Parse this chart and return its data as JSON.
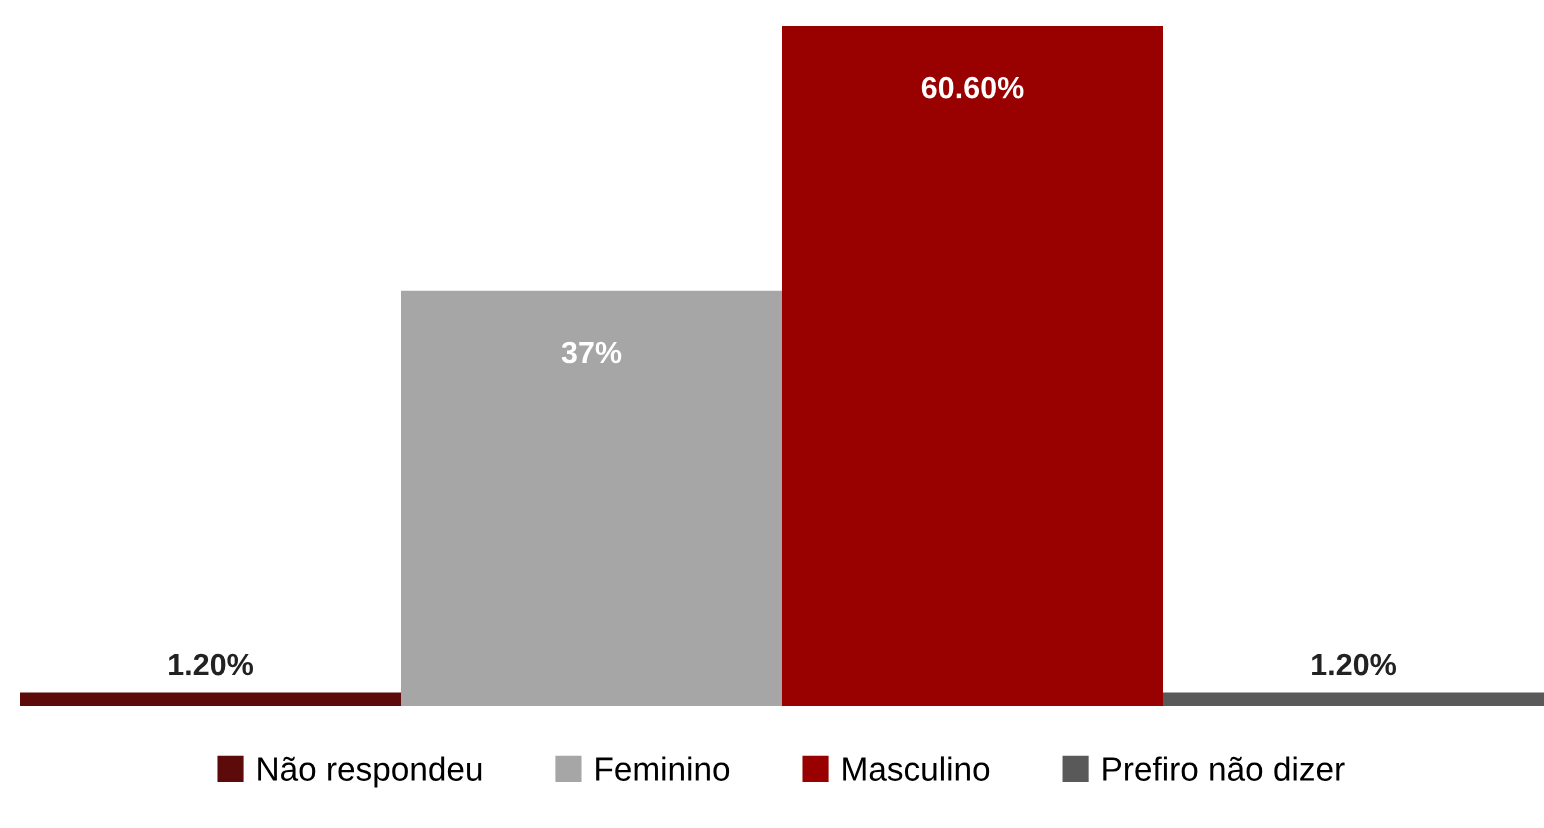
{
  "chart_data": {
    "type": "bar",
    "categories": [
      null
    ],
    "series": [
      {
        "name": "Não respondeu",
        "color": "#5c0a0a",
        "values": [
          1.2
        ],
        "value_labels": [
          "1.20%"
        ]
      },
      {
        "name": "Feminino",
        "color": "#a6a6a6",
        "values": [
          37
        ],
        "value_labels": [
          "37%"
        ]
      },
      {
        "name": "Masculino",
        "color": "#990000",
        "values": [
          60.6
        ],
        "value_labels": [
          "60.60%"
        ]
      },
      {
        "name": "Prefiro não dizer",
        "color": "#595959",
        "values": [
          1.2
        ],
        "value_labels": [
          "1.20%"
        ]
      }
    ],
    "legend": "bottom"
  }
}
